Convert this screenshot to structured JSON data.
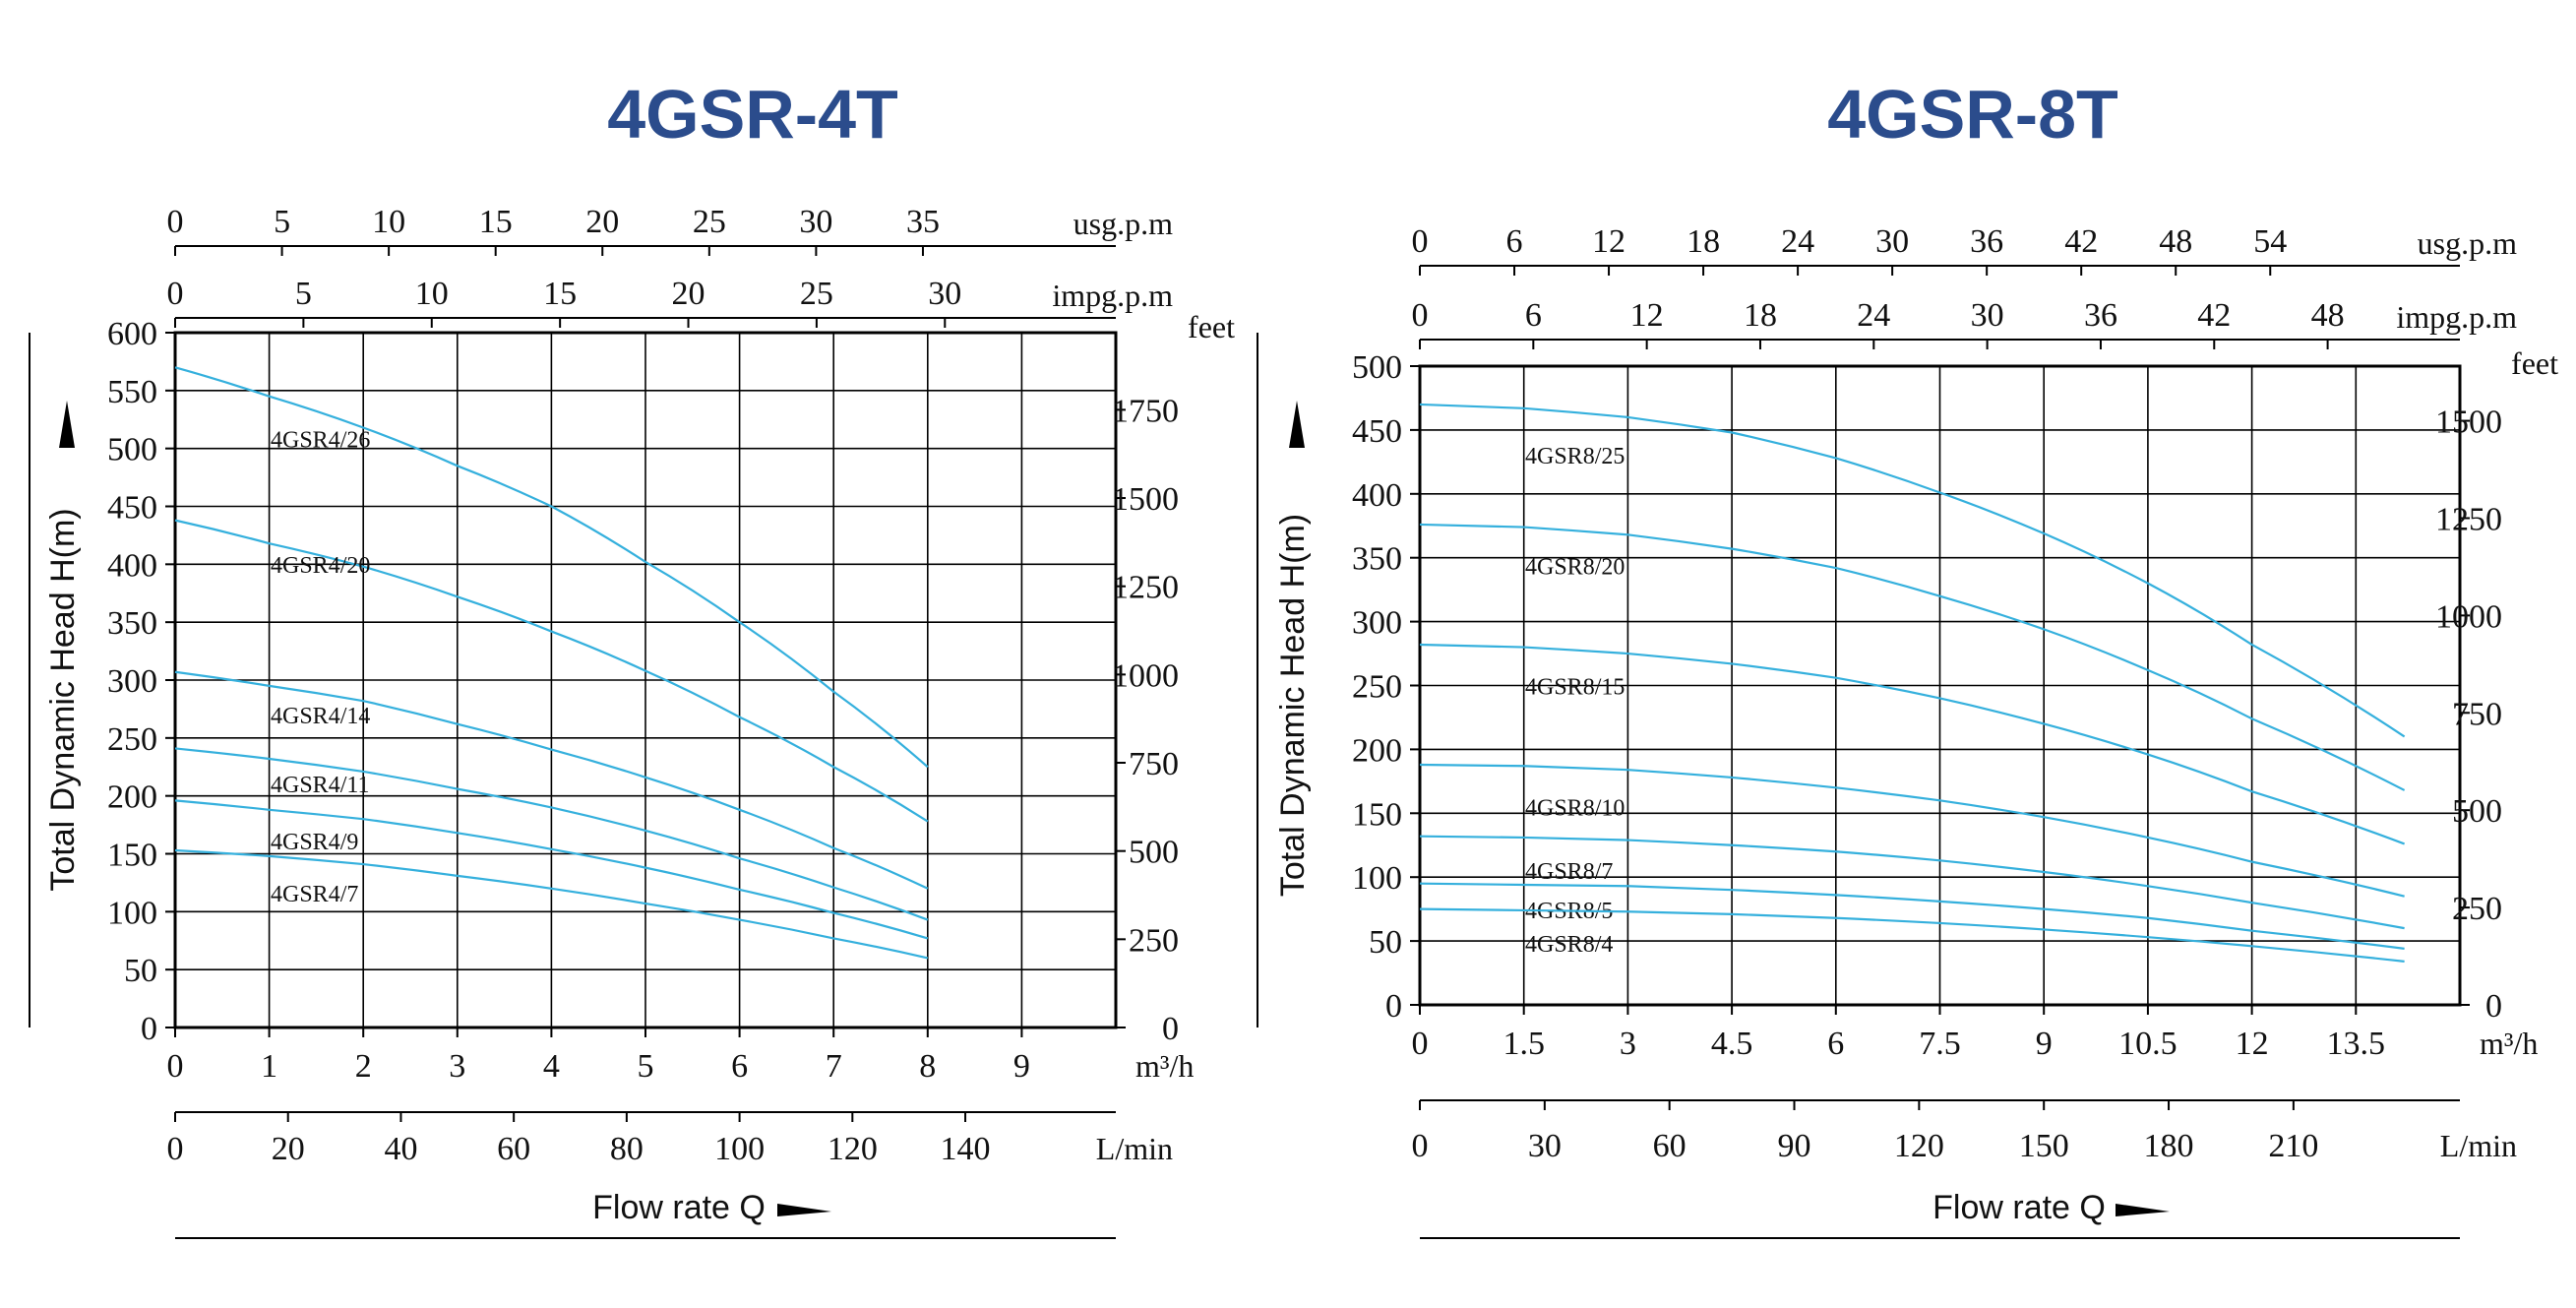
{
  "colors": {
    "title": "#2b4c8c",
    "curve": "#35b0dd",
    "grid": "#000000",
    "text": "#111111"
  },
  "chart_data": [
    {
      "type": "line",
      "title": "4GSR-4T",
      "ylabel": "Total Dynamic Head H(m)",
      "xlabel": "Flow rate Q",
      "x_unit": "m³/h",
      "y_unit_right": "feet",
      "xlim": [
        0,
        10
      ],
      "ylim": [
        0,
        600
      ],
      "x_ticks": [
        0,
        1,
        2,
        3,
        4,
        5,
        6,
        7,
        8,
        9
      ],
      "y_ticks": [
        0,
        50,
        100,
        150,
        200,
        250,
        300,
        350,
        400,
        450,
        500,
        550,
        600
      ],
      "right_axis": {
        "label": "feet",
        "ticks": [
          0,
          250,
          500,
          750,
          1000,
          1250,
          1500,
          1750
        ],
        "factor": 3.28084
      },
      "top_axes": [
        {
          "unit": "usg.p.m",
          "ticks": [
            0,
            5,
            10,
            15,
            20,
            25,
            30,
            35
          ],
          "factor": 4.40287
        },
        {
          "unit": "impg.p.m",
          "ticks": [
            0,
            5,
            10,
            15,
            20,
            25,
            30
          ],
          "factor": 3.66615
        }
      ],
      "bottom_axis": {
        "unit": "L/min",
        "ticks": [
          0,
          20,
          40,
          60,
          80,
          100,
          120,
          140
        ],
        "factor": 16.6667
      },
      "series": [
        {
          "name": "4GSR4/26",
          "x": [
            0,
            1,
            2,
            3,
            4,
            5,
            6,
            7,
            8
          ],
          "y": [
            570,
            545,
            518,
            485,
            450,
            402,
            350,
            290,
            225
          ]
        },
        {
          "name": "4GSR4/20",
          "x": [
            0,
            1,
            2,
            3,
            4,
            5,
            6,
            7,
            8
          ],
          "y": [
            438,
            418,
            398,
            372,
            342,
            308,
            268,
            225,
            178
          ]
        },
        {
          "name": "4GSR4/14",
          "x": [
            0,
            1,
            2,
            3,
            4,
            5,
            6,
            7,
            8
          ],
          "y": [
            307,
            295,
            282,
            262,
            240,
            216,
            188,
            155,
            120
          ]
        },
        {
          "name": "4GSR4/11",
          "x": [
            0,
            1,
            2,
            3,
            4,
            5,
            6,
            7,
            8
          ],
          "y": [
            241,
            232,
            221,
            206,
            190,
            170,
            146,
            121,
            93
          ]
        },
        {
          "name": "4GSR4/9",
          "x": [
            0,
            1,
            2,
            3,
            4,
            5,
            6,
            7,
            8
          ],
          "y": [
            196,
            188,
            180,
            168,
            154,
            138,
            119,
            99,
            77
          ]
        },
        {
          "name": "4GSR4/7",
          "x": [
            0,
            1,
            2,
            3,
            4,
            5,
            6,
            7,
            8
          ],
          "y": [
            153,
            148,
            141,
            131,
            120,
            107,
            93,
            77,
            60
          ]
        }
      ]
    },
    {
      "type": "line",
      "title": "4GSR-8T",
      "ylabel": "Total Dynamic Head H(m)",
      "xlabel": "Flow rate Q",
      "x_unit": "m³/h",
      "y_unit_right": "feet",
      "xlim": [
        0,
        15
      ],
      "ylim": [
        0,
        500
      ],
      "x_ticks": [
        0,
        1.5,
        3,
        4.5,
        6,
        7.5,
        9,
        10.5,
        12,
        13.5
      ],
      "x_tick_labels": [
        "0",
        "1.5",
        "3",
        "4.5",
        "6",
        "7.5",
        "9",
        "10.5",
        "12",
        "13.5"
      ],
      "y_ticks": [
        0,
        50,
        100,
        150,
        200,
        250,
        300,
        350,
        400,
        450,
        500
      ],
      "right_axis": {
        "label": "feet",
        "ticks": [
          0,
          250,
          500,
          750,
          1000,
          1250,
          1500
        ],
        "factor": 3.28084
      },
      "top_axes": [
        {
          "unit": "usg.p.m",
          "ticks": [
            0,
            6,
            12,
            18,
            24,
            30,
            36,
            42,
            48,
            54
          ],
          "factor": 4.40287
        },
        {
          "unit": "impg.p.m",
          "ticks": [
            0,
            6,
            12,
            18,
            24,
            30,
            36,
            42,
            48
          ],
          "factor": 3.66615
        }
      ],
      "bottom_axis": {
        "unit": "L/min",
        "ticks": [
          0,
          30,
          60,
          90,
          120,
          150,
          180,
          210
        ],
        "factor": 16.6667
      },
      "series": [
        {
          "name": "4GSR8/25",
          "x": [
            0,
            1.5,
            3,
            4.5,
            6,
            7.5,
            9,
            10.5,
            12,
            14.2
          ],
          "y": [
            470,
            467,
            460,
            448,
            428,
            401,
            369,
            330,
            282,
            210
          ]
        },
        {
          "name": "4GSR8/20",
          "x": [
            0,
            1.5,
            3,
            4.5,
            6,
            7.5,
            9,
            10.5,
            12,
            14.2
          ],
          "y": [
            376,
            374,
            368,
            357,
            342,
            320,
            294,
            262,
            224,
            168
          ]
        },
        {
          "name": "4GSR8/15",
          "x": [
            0,
            1.5,
            3,
            4.5,
            6,
            7.5,
            9,
            10.5,
            12,
            14.2
          ],
          "y": [
            282,
            280,
            275,
            267,
            256,
            240,
            220,
            196,
            167,
            126
          ]
        },
        {
          "name": "4GSR8/10",
          "x": [
            0,
            1.5,
            3,
            4.5,
            6,
            7.5,
            9,
            10.5,
            12,
            14.2
          ],
          "y": [
            188,
            187,
            184,
            178,
            170,
            160,
            147,
            131,
            112,
            85
          ]
        },
        {
          "name": "4GSR8/7",
          "x": [
            0,
            1.5,
            3,
            4.5,
            6,
            7.5,
            9,
            10.5,
            12,
            14.2
          ],
          "y": [
            132,
            131,
            129,
            125,
            120,
            113,
            104,
            93,
            80,
            60
          ]
        },
        {
          "name": "4GSR8/5",
          "x": [
            0,
            1.5,
            3,
            4.5,
            6,
            7.5,
            9,
            10.5,
            12,
            14.2
          ],
          "y": [
            95,
            94,
            93,
            90,
            86,
            81,
            75,
            68,
            58,
            44
          ]
        },
        {
          "name": "4GSR8/4",
          "x": [
            0,
            1.5,
            3,
            4.5,
            6,
            7.5,
            9,
            10.5,
            12,
            14.2
          ],
          "y": [
            75,
            74,
            73,
            71,
            68,
            64,
            59,
            53,
            46,
            34
          ]
        }
      ]
    }
  ]
}
